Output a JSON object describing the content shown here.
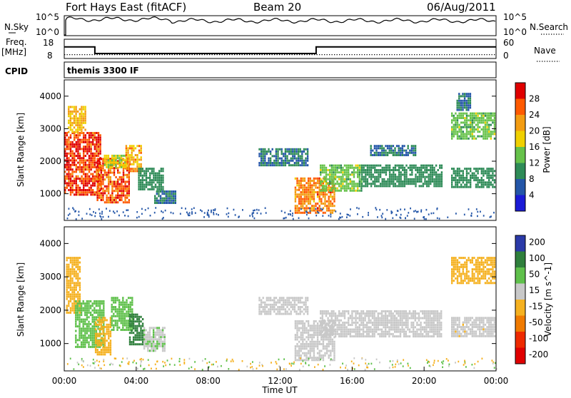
{
  "header": {
    "title": "Fort Hays East (fitACF)",
    "beam": "Beam 20",
    "date": "06/Aug/2011"
  },
  "labels": {
    "nsky": "N.Sky",
    "nsearch": "N.Search",
    "freq_top": "Freq.",
    "freq_unit": "[MHz]",
    "nave": "Nave",
    "cpid": "CPID",
    "cpid_value": "themis 3300 IF",
    "nsky_ticks": [
      "10^5",
      "10^0"
    ],
    "nsearch_ticks": [
      "10^5",
      "10^0"
    ],
    "freq_ticks": [
      "18",
      "8"
    ],
    "nave_ticks": [
      "60",
      "0"
    ]
  },
  "colors": {
    "power": [
      "#1b1bd6",
      "#2456a8",
      "#2e8b57",
      "#66c24a",
      "#f0d000",
      "#f39c12",
      "#ff5a00",
      "#e00000"
    ],
    "velocity": [
      "#2b3aa8",
      "#2f7f3c",
      "#5fc04b",
      "#c8c8c8",
      "#f5b120",
      "#f07a00",
      "#ee2a00",
      "#e00000"
    ],
    "velocity_gray": "#c8c8c8"
  },
  "chart_data": [
    {
      "type": "line",
      "name": "status-panels",
      "x_range": [
        0,
        24
      ],
      "freq_mhz": {
        "x": [
          0,
          1.7,
          1.7,
          14.0,
          14.0,
          24
        ],
        "y": [
          14,
          14,
          10.6,
          10.6,
          14,
          14
        ]
      },
      "nave": {
        "x": [
          0,
          24
        ],
        "y": [
          12,
          12
        ]
      },
      "cpid": "themis 3300 IF"
    },
    {
      "type": "heatmap",
      "name": "power",
      "xlabel": "",
      "ylabel": "Slant Range [km]",
      "xlim": [
        0,
        24
      ],
      "ylim": [
        180,
        4500
      ],
      "y_ticks": [
        1000,
        2000,
        3000,
        4000
      ],
      "colorbar": {
        "label": "Power [dB]",
        "ticks": [
          4,
          8,
          12,
          16,
          20,
          24,
          28
        ],
        "range": [
          0,
          32
        ]
      },
      "regions": [
        {
          "t": [
            0.0,
            2.0
          ],
          "r": [
            1000,
            2900
          ],
          "value": 28
        },
        {
          "t": [
            0.2,
            1.2
          ],
          "r": [
            2900,
            3700
          ],
          "value": 20
        },
        {
          "t": [
            1.8,
            3.6
          ],
          "r": [
            700,
            2100
          ],
          "value": 26
        },
        {
          "t": [
            2.2,
            3.4
          ],
          "r": [
            1800,
            2200
          ],
          "value": 16
        },
        {
          "t": [
            3.4,
            4.3
          ],
          "r": [
            1700,
            2500
          ],
          "value": 22
        },
        {
          "t": [
            4.1,
            5.5
          ],
          "r": [
            1100,
            1800
          ],
          "value": 10
        },
        {
          "t": [
            5.0,
            6.2
          ],
          "r": [
            700,
            1100
          ],
          "value": 8
        },
        {
          "t": [
            10.8,
            13.5
          ],
          "r": [
            1900,
            2400
          ],
          "value": 8
        },
        {
          "t": [
            12.8,
            15.0
          ],
          "r": [
            400,
            1500
          ],
          "value": 24
        },
        {
          "t": [
            14.2,
            16.5
          ],
          "r": [
            1100,
            1900
          ],
          "value": 14
        },
        {
          "t": [
            16.5,
            21.0
          ],
          "r": [
            1200,
            1900
          ],
          "value": 10
        },
        {
          "t": [
            17.0,
            19.5
          ],
          "r": [
            2200,
            2500
          ],
          "value": 8
        },
        {
          "t": [
            21.5,
            23.9
          ],
          "r": [
            1200,
            1800
          ],
          "value": 10
        },
        {
          "t": [
            21.5,
            23.9
          ],
          "r": [
            2700,
            3500
          ],
          "value": 14
        },
        {
          "t": [
            21.8,
            22.6
          ],
          "r": [
            3600,
            4100
          ],
          "value": 8
        }
      ]
    },
    {
      "type": "heatmap",
      "name": "velocity",
      "xlabel": "Time UT",
      "ylabel": "Slant Range [km]",
      "xlim": [
        0,
        24
      ],
      "ylim": [
        180,
        4500
      ],
      "x_ticks": [
        "00:00",
        "04:00",
        "08:00",
        "12:00",
        "16:00",
        "20:00",
        "00:00"
      ],
      "y_ticks": [
        1000,
        2000,
        3000,
        4000
      ],
      "colorbar": {
        "label": "Velocity [m s^-1]",
        "ticks": [
          200,
          100,
          50,
          15,
          -15,
          -50,
          -100,
          -200
        ]
      },
      "regions": [
        {
          "t": [
            0.1,
            0.9
          ],
          "r": [
            1900,
            3600
          ],
          "value": -50
        },
        {
          "t": [
            0.6,
            2.2
          ],
          "r": [
            900,
            2300
          ],
          "value": 50
        },
        {
          "t": [
            1.7,
            2.6
          ],
          "r": [
            700,
            1800
          ],
          "value": -30
        },
        {
          "t": [
            2.6,
            3.8
          ],
          "r": [
            1400,
            2400
          ],
          "value": 30
        },
        {
          "t": [
            3.6,
            4.4
          ],
          "r": [
            1000,
            1900
          ],
          "value": 120
        },
        {
          "t": [
            4.4,
            5.6
          ],
          "r": [
            800,
            1500
          ],
          "value": 10
        },
        {
          "t": [
            10.8,
            13.5
          ],
          "r": [
            1900,
            2400
          ],
          "value": 0
        },
        {
          "t": [
            12.8,
            15.0
          ],
          "r": [
            500,
            1700
          ],
          "value": 0
        },
        {
          "t": [
            14.2,
            21.0
          ],
          "r": [
            1200,
            2000
          ],
          "value": 0
        },
        {
          "t": [
            21.5,
            23.9
          ],
          "r": [
            1200,
            1800
          ],
          "value": -5
        },
        {
          "t": [
            21.5,
            23.9
          ],
          "r": [
            2800,
            3600
          ],
          "value": -40
        }
      ]
    }
  ]
}
